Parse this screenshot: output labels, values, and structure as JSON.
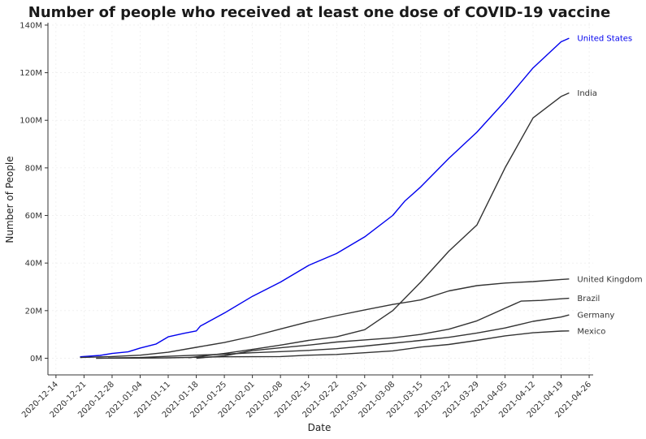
{
  "chart_data": {
    "type": "line",
    "title": "Number of people who received at least one dose of COVID-19 vaccine",
    "xlabel": "Date",
    "ylabel": "Number of People",
    "xlim": [
      "2020-12-12",
      "2021-04-27"
    ],
    "ylim": [
      -7000000,
      141000000
    ],
    "grid": true,
    "legend": "direct-labels-right",
    "x_ticks": [
      "2020-12-14",
      "2020-12-21",
      "2020-12-28",
      "2021-01-04",
      "2021-01-11",
      "2021-01-18",
      "2021-01-25",
      "2021-02-01",
      "2021-02-08",
      "2021-02-15",
      "2021-02-22",
      "2021-03-01",
      "2021-03-08",
      "2021-03-15",
      "2021-03-22",
      "2021-03-29",
      "2021-04-05",
      "2021-04-12",
      "2021-04-19",
      "2021-04-26"
    ],
    "y_ticks": [
      {
        "value": 0,
        "label": "0M"
      },
      {
        "value": 20000000,
        "label": "20M"
      },
      {
        "value": 40000000,
        "label": "40M"
      },
      {
        "value": 60000000,
        "label": "60M"
      },
      {
        "value": 80000000,
        "label": "80M"
      },
      {
        "value": 100000000,
        "label": "100M"
      },
      {
        "value": 120000000,
        "label": "120M"
      },
      {
        "value": 140000000,
        "label": "140M"
      }
    ],
    "series": [
      {
        "name": "United States",
        "color": "#0000ee",
        "points": [
          [
            "2020-12-20",
            600000
          ],
          [
            "2020-12-25",
            1200000
          ],
          [
            "2020-12-28",
            2000000
          ],
          [
            "2021-01-01",
            2700000
          ],
          [
            "2021-01-04",
            4300000
          ],
          [
            "2021-01-08",
            6000000
          ],
          [
            "2021-01-11",
            9000000
          ],
          [
            "2021-01-15",
            10500000
          ],
          [
            "2021-01-18",
            11500000
          ],
          [
            "2021-01-19",
            13500000
          ],
          [
            "2021-01-25",
            19000000
          ],
          [
            "2021-02-01",
            26000000
          ],
          [
            "2021-02-08",
            32000000
          ],
          [
            "2021-02-15",
            39000000
          ],
          [
            "2021-02-22",
            44000000
          ],
          [
            "2021-03-01",
            51000000
          ],
          [
            "2021-03-08",
            60000000
          ],
          [
            "2021-03-11",
            66000000
          ],
          [
            "2021-03-15",
            72000000
          ],
          [
            "2021-03-22",
            84000000
          ],
          [
            "2021-03-29",
            95000000
          ],
          [
            "2021-04-05",
            108000000
          ],
          [
            "2021-04-12",
            122000000
          ],
          [
            "2021-04-19",
            133000000
          ],
          [
            "2021-04-21",
            134500000
          ]
        ]
      },
      {
        "name": "India",
        "color": "#333333",
        "points": [
          [
            "2021-01-16",
            200000
          ],
          [
            "2021-01-25",
            2000000
          ],
          [
            "2021-02-01",
            3700000
          ],
          [
            "2021-02-08",
            5500000
          ],
          [
            "2021-02-15",
            7500000
          ],
          [
            "2021-02-22",
            9000000
          ],
          [
            "2021-03-01",
            12000000
          ],
          [
            "2021-03-08",
            20000000
          ],
          [
            "2021-03-15",
            32000000
          ],
          [
            "2021-03-22",
            45000000
          ],
          [
            "2021-03-29",
            56000000
          ],
          [
            "2021-04-05",
            80000000
          ],
          [
            "2021-04-12",
            101000000
          ],
          [
            "2021-04-19",
            110000000
          ],
          [
            "2021-04-21",
            111500000
          ]
        ]
      },
      {
        "name": "United Kingdom",
        "color": "#333333",
        "points": [
          [
            "2020-12-20",
            300000
          ],
          [
            "2020-12-28",
            700000
          ],
          [
            "2021-01-04",
            1300000
          ],
          [
            "2021-01-11",
            2500000
          ],
          [
            "2021-01-18",
            4600000
          ],
          [
            "2021-01-25",
            6600000
          ],
          [
            "2021-02-01",
            9200000
          ],
          [
            "2021-02-08",
            12300000
          ],
          [
            "2021-02-15",
            15300000
          ],
          [
            "2021-02-22",
            17900000
          ],
          [
            "2021-03-01",
            20300000
          ],
          [
            "2021-03-08",
            22600000
          ],
          [
            "2021-03-15",
            24500000
          ],
          [
            "2021-03-22",
            28300000
          ],
          [
            "2021-03-29",
            30500000
          ],
          [
            "2021-04-05",
            31600000
          ],
          [
            "2021-04-12",
            32200000
          ],
          [
            "2021-04-19",
            33100000
          ],
          [
            "2021-04-21",
            33300000
          ]
        ]
      },
      {
        "name": "Brazil",
        "color": "#333333",
        "points": [
          [
            "2021-01-18",
            0
          ],
          [
            "2021-01-25",
            1000000
          ],
          [
            "2021-02-01",
            3200000
          ],
          [
            "2021-02-08",
            4400000
          ],
          [
            "2021-02-15",
            5500000
          ],
          [
            "2021-02-22",
            6800000
          ],
          [
            "2021-03-01",
            7700000
          ],
          [
            "2021-03-08",
            8600000
          ],
          [
            "2021-03-15",
            10000000
          ],
          [
            "2021-03-22",
            12200000
          ],
          [
            "2021-03-29",
            15700000
          ],
          [
            "2021-04-05",
            21000000
          ],
          [
            "2021-04-09",
            24000000
          ],
          [
            "2021-04-14",
            24300000
          ],
          [
            "2021-04-19",
            25000000
          ],
          [
            "2021-04-21",
            25200000
          ]
        ]
      },
      {
        "name": "Germany",
        "color": "#333333",
        "points": [
          [
            "2020-12-27",
            100000
          ],
          [
            "2021-01-04",
            300000
          ],
          [
            "2021-01-11",
            800000
          ],
          [
            "2021-01-18",
            1300000
          ],
          [
            "2021-01-25",
            1700000
          ],
          [
            "2021-02-01",
            2300000
          ],
          [
            "2021-02-08",
            2800000
          ],
          [
            "2021-02-15",
            3300000
          ],
          [
            "2021-02-22",
            4000000
          ],
          [
            "2021-03-01",
            5100000
          ],
          [
            "2021-03-08",
            6300000
          ],
          [
            "2021-03-15",
            7500000
          ],
          [
            "2021-03-22",
            8800000
          ],
          [
            "2021-03-29",
            10600000
          ],
          [
            "2021-04-05",
            12700000
          ],
          [
            "2021-04-12",
            15500000
          ],
          [
            "2021-04-19",
            17300000
          ],
          [
            "2021-04-21",
            18200000
          ]
        ]
      },
      {
        "name": "Mexico",
        "color": "#333333",
        "points": [
          [
            "2020-12-24",
            3000
          ],
          [
            "2021-01-04",
            60000
          ],
          [
            "2021-01-11",
            150000
          ],
          [
            "2021-01-18",
            400000
          ],
          [
            "2021-01-25",
            600000
          ],
          [
            "2021-02-01",
            650000
          ],
          [
            "2021-02-08",
            700000
          ],
          [
            "2021-02-15",
            1300000
          ],
          [
            "2021-02-22",
            1600000
          ],
          [
            "2021-03-01",
            2300000
          ],
          [
            "2021-03-08",
            3100000
          ],
          [
            "2021-03-15",
            4700000
          ],
          [
            "2021-03-22",
            5800000
          ],
          [
            "2021-03-29",
            7500000
          ],
          [
            "2021-04-05",
            9400000
          ],
          [
            "2021-04-12",
            10700000
          ],
          [
            "2021-04-19",
            11400000
          ],
          [
            "2021-04-21",
            11500000
          ]
        ]
      }
    ]
  }
}
